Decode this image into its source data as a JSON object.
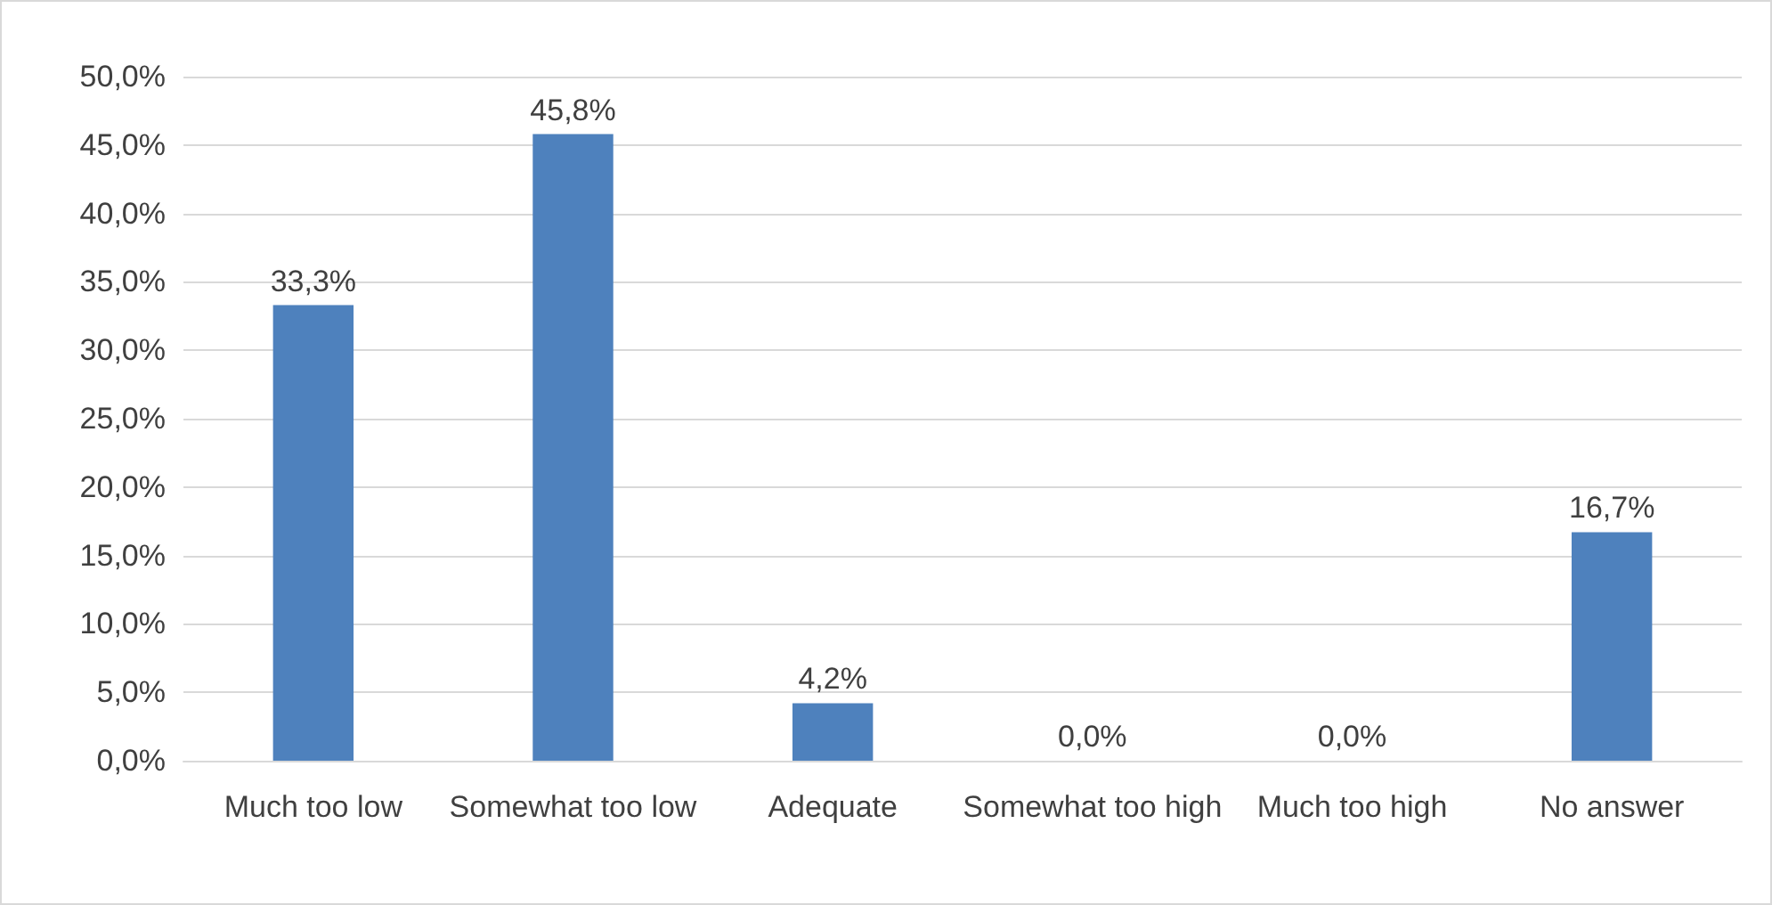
{
  "chart_data": {
    "type": "bar",
    "categories": [
      "Much too low",
      "Somewhat too low",
      "Adequate",
      "Somewhat too high",
      "Much too high",
      "No answer"
    ],
    "values": [
      33.3,
      45.8,
      4.2,
      0,
      0,
      16.7
    ],
    "value_labels": [
      "33,3%",
      "45,8%",
      "4,2%",
      "0,0%",
      "0,0%",
      "16,7%"
    ],
    "color": "#4e81bd",
    "ylim": [
      0,
      50
    ],
    "yticks": [
      {
        "value": 0,
        "label": "0,0%"
      },
      {
        "value": 5,
        "label": "5,0%"
      },
      {
        "value": 10,
        "label": "10,0%"
      },
      {
        "value": 15,
        "label": "15,0%"
      },
      {
        "value": 20,
        "label": "20,0%"
      },
      {
        "value": 25,
        "label": "25,0%"
      },
      {
        "value": 30,
        "label": "30,0%"
      },
      {
        "value": 35,
        "label": "35,0%"
      },
      {
        "value": 40,
        "label": "40,0%"
      },
      {
        "value": 45,
        "label": "45,0%"
      },
      {
        "value": 50,
        "label": "50,0%"
      }
    ],
    "grid": "y"
  }
}
